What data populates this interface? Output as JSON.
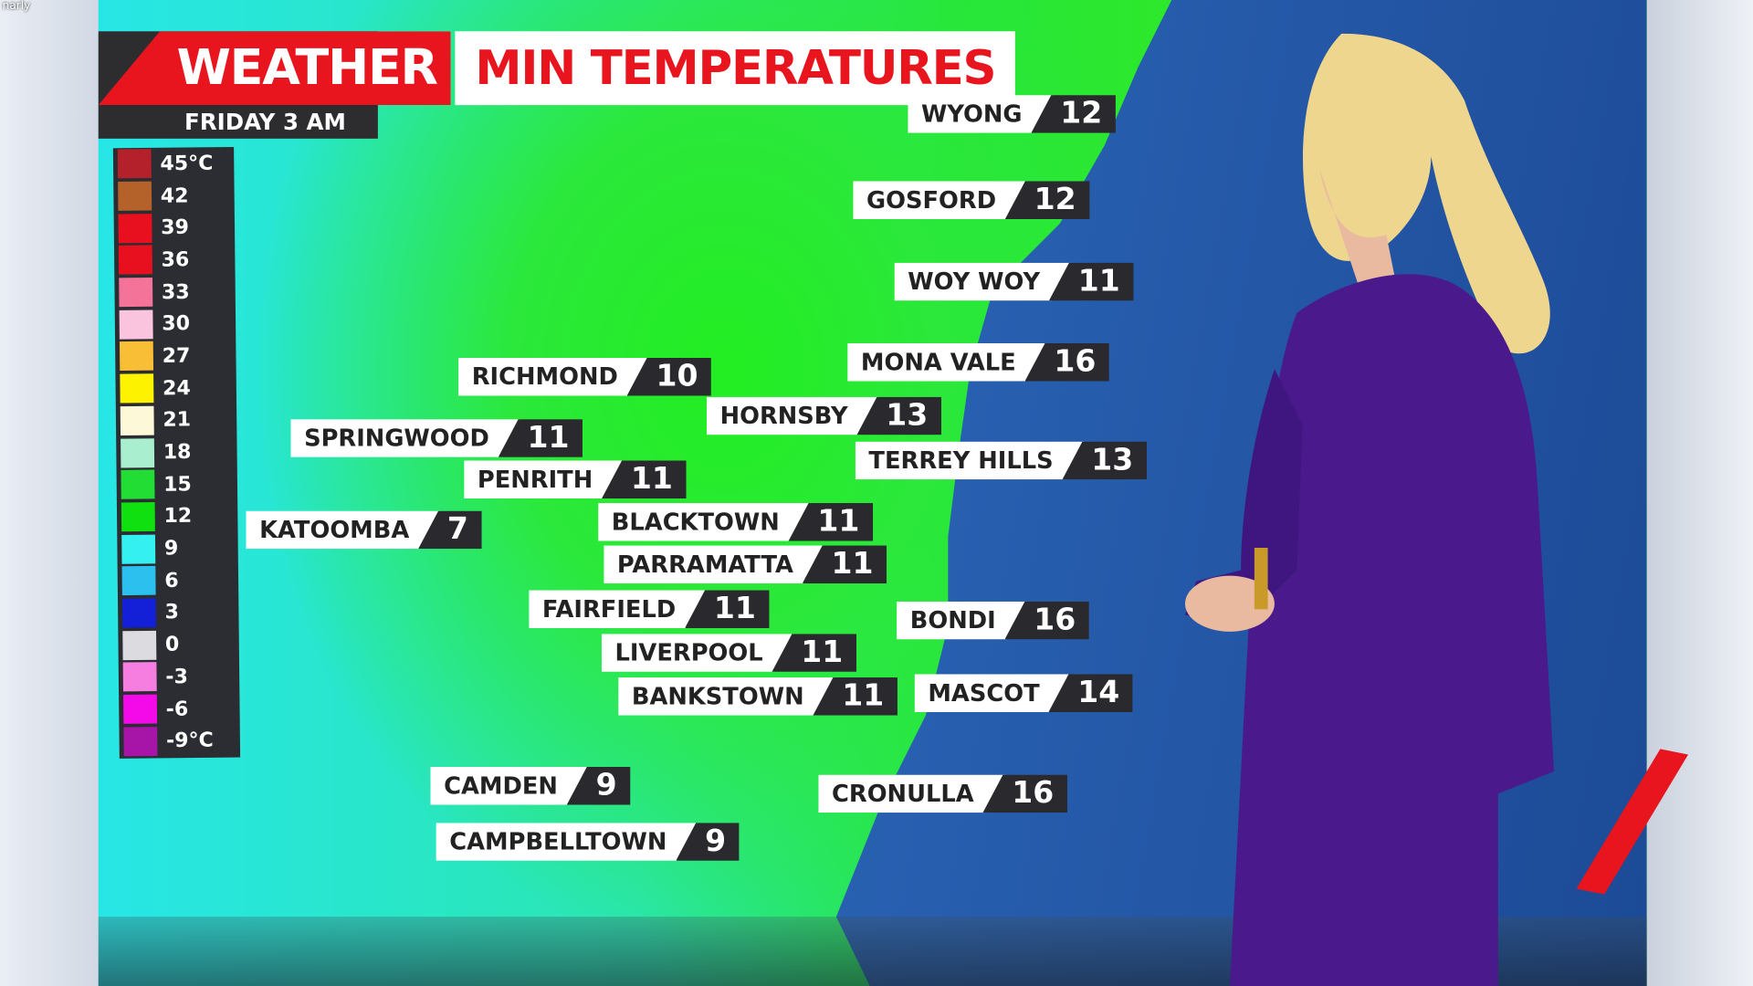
{
  "caption": "narly",
  "header": {
    "brand": "WEATHER",
    "title": "MIN TEMPERATURES",
    "subtitle": "FRIDAY 3 AM"
  },
  "legend": {
    "items": [
      {
        "label": "45°C",
        "color": "#b5212a"
      },
      {
        "label": "42",
        "color": "#b5612a"
      },
      {
        "label": "39",
        "color": "#e8101e"
      },
      {
        "label": "36",
        "color": "#e8101e"
      },
      {
        "label": "33",
        "color": "#f47399"
      },
      {
        "label": "30",
        "color": "#fbc4de"
      },
      {
        "label": "27",
        "color": "#f8bf36"
      },
      {
        "label": "24",
        "color": "#fdf200"
      },
      {
        "label": "21",
        "color": "#fdf8d8"
      },
      {
        "label": "18",
        "color": "#a9efcf"
      },
      {
        "label": "15",
        "color": "#22dd33"
      },
      {
        "label": "12",
        "color": "#10e010"
      },
      {
        "label": "9",
        "color": "#34f0f0"
      },
      {
        "label": "6",
        "color": "#2cc0ef"
      },
      {
        "label": "3",
        "color": "#1320d8"
      },
      {
        "label": "0",
        "color": "#dcdce0"
      },
      {
        "label": "-3",
        "color": "#f57ee0"
      },
      {
        "label": "-6",
        "color": "#f40ae8"
      },
      {
        "label": "-9°C",
        "color": "#a615a8"
      }
    ]
  },
  "places": [
    {
      "name": "WYONG",
      "temp": "12"
    },
    {
      "name": "GOSFORD",
      "temp": "12"
    },
    {
      "name": "WOY WOY",
      "temp": "11"
    },
    {
      "name": "MONA VALE",
      "temp": "16"
    },
    {
      "name": "RICHMOND",
      "temp": "10"
    },
    {
      "name": "HORNSBY",
      "temp": "13"
    },
    {
      "name": "SPRINGWOOD",
      "temp": "11"
    },
    {
      "name": "TERREY HILLS",
      "temp": "13"
    },
    {
      "name": "PENRITH",
      "temp": "11"
    },
    {
      "name": "KATOOMBA",
      "temp": "7"
    },
    {
      "name": "BLACKTOWN",
      "temp": "11"
    },
    {
      "name": "PARRAMATTA",
      "temp": "11"
    },
    {
      "name": "FAIRFIELD",
      "temp": "11"
    },
    {
      "name": "BONDI",
      "temp": "16"
    },
    {
      "name": "LIVERPOOL",
      "temp": "11"
    },
    {
      "name": "BANKSTOWN",
      "temp": "11"
    },
    {
      "name": "MASCOT",
      "temp": "14"
    },
    {
      "name": "CAMDEN",
      "temp": "9"
    },
    {
      "name": "CRONULLA",
      "temp": "16"
    },
    {
      "name": "CAMPBELLTOWN",
      "temp": "9"
    }
  ],
  "colors": {
    "brand_red": "#e8141e",
    "ocean": "#2458a8",
    "land": "#2ee82a",
    "suit": "#4a1a8c"
  }
}
